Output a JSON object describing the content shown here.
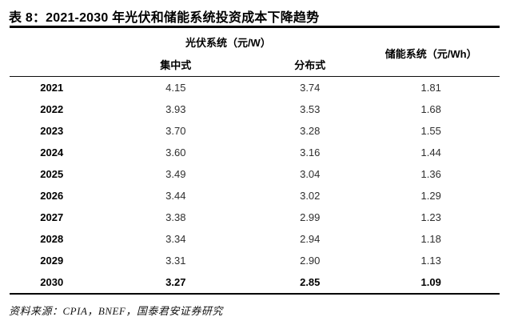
{
  "title": "表 8：2021-2030 年光伏和储能系统投资成本下降趋势",
  "table": {
    "group_headers": {
      "pv": "光伏系统（元/W）",
      "storage": "储能系统（元/Wh）"
    },
    "sub_headers": {
      "centralized": "集中式",
      "distributed": "分布式"
    },
    "rows": [
      {
        "year": "2021",
        "centralized": "4.15",
        "distributed": "3.74",
        "storage": "1.81"
      },
      {
        "year": "2022",
        "centralized": "3.93",
        "distributed": "3.53",
        "storage": "1.68"
      },
      {
        "year": "2023",
        "centralized": "3.70",
        "distributed": "3.28",
        "storage": "1.55"
      },
      {
        "year": "2024",
        "centralized": "3.60",
        "distributed": "3.16",
        "storage": "1.44"
      },
      {
        "year": "2025",
        "centralized": "3.49",
        "distributed": "3.04",
        "storage": "1.36"
      },
      {
        "year": "2026",
        "centralized": "3.44",
        "distributed": "3.02",
        "storage": "1.29"
      },
      {
        "year": "2027",
        "centralized": "3.38",
        "distributed": "2.99",
        "storage": "1.23"
      },
      {
        "year": "2028",
        "centralized": "3.34",
        "distributed": "2.94",
        "storage": "1.18"
      },
      {
        "year": "2029",
        "centralized": "3.31",
        "distributed": "2.90",
        "storage": "1.13"
      },
      {
        "year": "2030",
        "centralized": "3.27",
        "distributed": "2.85",
        "storage": "1.09"
      }
    ]
  },
  "footer": {
    "source": "资料来源：CPIA，BNEF，国泰君安证券研究"
  },
  "colors": {
    "background": "#ffffff",
    "title_text": "#000000",
    "body_text": "#2f2f2f",
    "rule": "#000000"
  }
}
